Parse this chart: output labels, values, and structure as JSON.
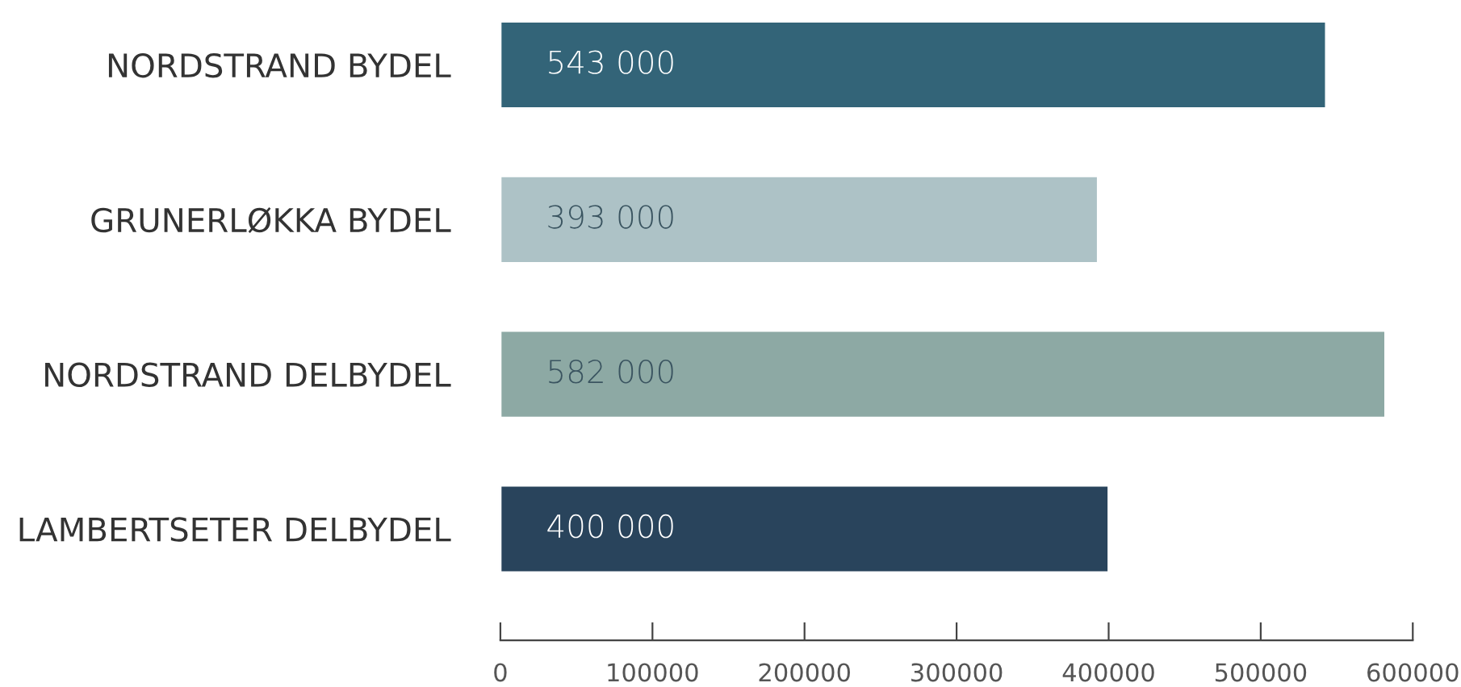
{
  "chart_data": {
    "type": "bar",
    "orientation": "horizontal",
    "categories": [
      "NORDSTRAND BYDEL",
      "GRUNERLØKKA BYDEL",
      "NORDSTRAND DELBYDEL",
      "LAMBERTSETER DELBYDEL"
    ],
    "values": [
      543000,
      393000,
      582000,
      400000
    ],
    "colors": [
      "#336478",
      "#adc2c6",
      "#8da9a4",
      "#29445c"
    ],
    "value_labels": [
      "543 000",
      "393 000",
      "582 000",
      "400 000"
    ],
    "xlim": [
      0,
      600000
    ],
    "xticks": [
      0,
      100000,
      200000,
      300000,
      400000,
      500000,
      600000
    ],
    "grid": false,
    "legend": false
  }
}
